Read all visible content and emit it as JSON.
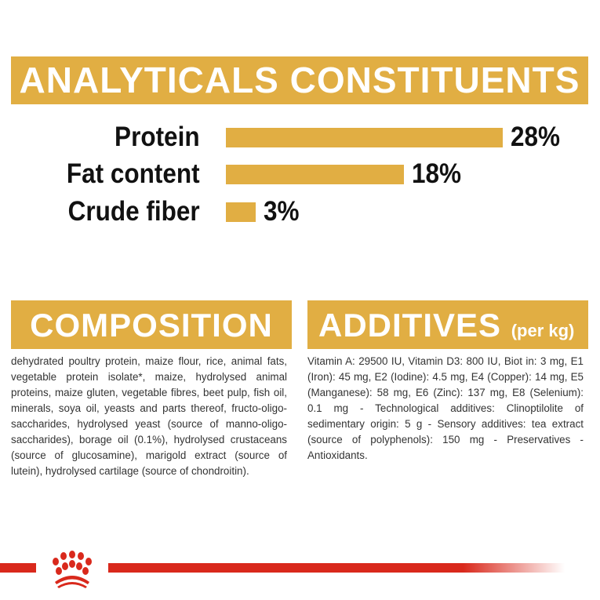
{
  "analyticals": {
    "title": "ANALYTICALS CONSTITUENTS"
  },
  "chart_data": {
    "type": "bar",
    "orientation": "horizontal",
    "title": "ANALYTICALS CONSTITUENTS",
    "categories": [
      "Protein",
      "Fat content",
      "Crude fiber"
    ],
    "values": [
      28,
      18,
      3
    ],
    "value_labels": [
      "28%",
      "18%",
      "3%"
    ],
    "unit": "%",
    "bar_color": "#e1ae43"
  },
  "composition": {
    "title": "COMPOSITION",
    "text": "dehydrated poultry protein, maize flour, rice, animal fats, vegetable protein isolate*, maize, hydrolysed animal proteins, maize gluten, vegetable fibres, beet pulp, fish oil, minerals, soya oil, yeasts and parts thereof, fructo-oligo-saccharides, hydrolysed yeast (source of manno-oligo- saccharides), borage oil (0.1%), hydrolysed crustaceans (source of glucosamine), marigold extract (source of lutein), hydrolysed cartilage (source of chondroitin)."
  },
  "additives": {
    "title": "ADDITIVES",
    "subtitle": "(per kg)",
    "text": "Vitamin A: 29500 IU, Vitamin D3: 800 IU, Biot in: 3 mg, E1 (Iron): 45 mg, E2 (Iodine): 4.5 mg, E4 (Copper): 14 mg, E5 (Manganese): 58 mg, E6 (Zinc): 137 mg, E8 (Selenium): 0.1 mg - Technological additives: Clinoptilolite of sedimentary origin: 5 g - Sensory additives: tea extract (source of polyphenols): 150 mg - Preservatives - Antioxidants."
  },
  "colors": {
    "accent": "#e1ae43",
    "brand_red": "#d9291c"
  },
  "footer": {
    "logo_icon": "royal-canin-crown-logo"
  }
}
